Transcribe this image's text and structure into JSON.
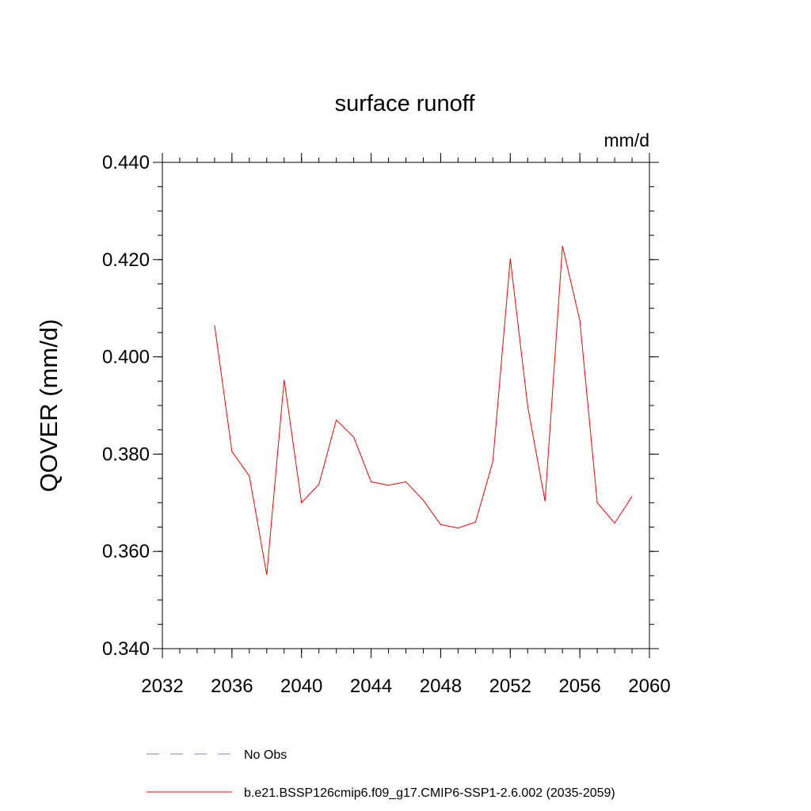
{
  "chart_data": {
    "type": "line",
    "title": "surface runoff",
    "units_label": "mm/d",
    "ylabel": "QOVER  (mm/d)",
    "xlabel": "",
    "xlim": [
      2032,
      2060
    ],
    "ylim": [
      0.34,
      0.44
    ],
    "x_ticks": [
      2032,
      2036,
      2040,
      2044,
      2048,
      2052,
      2056,
      2060
    ],
    "y_ticks": [
      "0.340",
      "0.360",
      "0.380",
      "0.400",
      "0.420",
      "0.440"
    ],
    "y_tick_values": [
      0.34,
      0.36,
      0.38,
      0.4,
      0.42,
      0.44
    ],
    "grid": false,
    "series": [
      {
        "name": "No Obs",
        "color": "#8080c0",
        "style": "dashed",
        "x": [],
        "values": []
      },
      {
        "name": "b.e21.BSSP126cmip6.f09_g17.CMIP6-SSP1-2.6.002 (2035-2059)",
        "color": "#ff0000",
        "style": "solid",
        "x": [
          2035,
          2036,
          2037,
          2038,
          2039,
          2040,
          2041,
          2042,
          2043,
          2044,
          2045,
          2046,
          2047,
          2048,
          2049,
          2050,
          2051,
          2052,
          2053,
          2054,
          2055,
          2056,
          2057,
          2058,
          2059
        ],
        "values": [
          0.4065,
          0.3805,
          0.3755,
          0.3552,
          0.3953,
          0.37,
          0.3738,
          0.387,
          0.3835,
          0.3743,
          0.3736,
          0.3743,
          0.3705,
          0.3655,
          0.3648,
          0.366,
          0.3785,
          0.4202,
          0.3898,
          0.3703,
          0.4228,
          0.4075,
          0.37,
          0.3658,
          0.3713
        ]
      }
    ],
    "legend": {
      "placement": "bottom-left",
      "entries": [
        "No Obs",
        "b.e21.BSSP126cmip6.f09_g17.CMIP6-SSP1-2.6.002 (2035-2059)"
      ]
    }
  }
}
